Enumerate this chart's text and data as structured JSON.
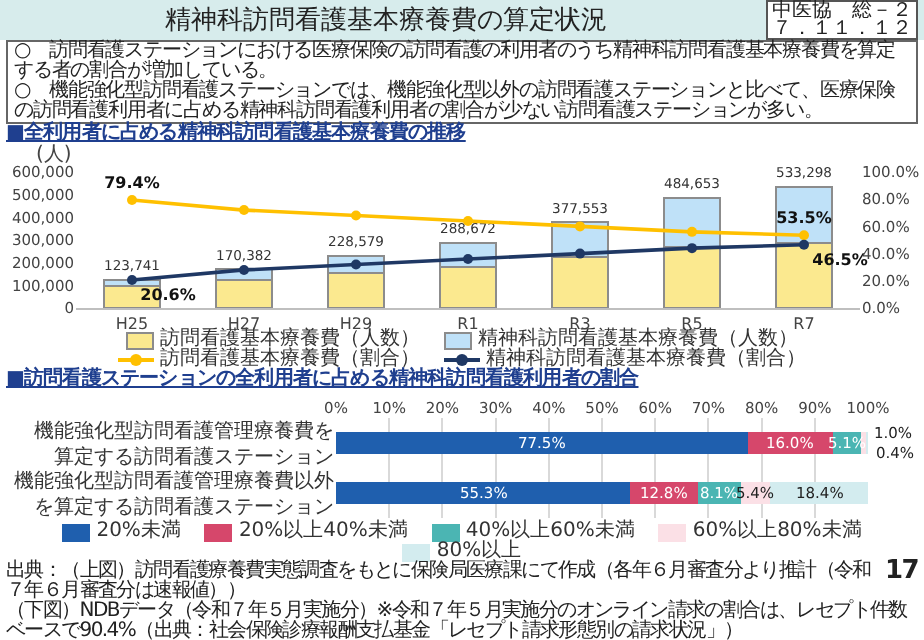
{
  "chart_data": [
    {
      "type": "bar",
      "title": "精神科訪問看護基本療養費の算定状況",
      "subtitle": "■全利用者に占める精神科訪問看護基本療養費の推移",
      "ylabel": "(人)",
      "annotations": [
        "中医協　総－２",
        "７．１１．１２",
        "○　訪問看護ステーションにおける医療保険の訪問看護の利用者のうち精神科訪問看護基本療養費を算定する者の割合が増加している。",
        "○　機能強化型訪問看護ステーションでは、機能強化型以外の訪問看護ステーションと比べて、医療保険の訪問看護利用者に占める精神科訪問看護利用者の割合が少ない訪問看護ステーションが多い。"
      ],
      "categories": [
        "H25",
        "H27",
        "H29",
        "R1",
        "R3",
        "R5",
        "R7"
      ],
      "stacked": true,
      "series": [
        {
          "name": "訪問看護基本療養費（人数）",
          "color": "#fbe98f",
          "values": [
            98000,
            123000,
            154000,
            183000,
            227000,
            271000,
            285000
          ]
        },
        {
          "name": "精神科訪問看護基本療養費（人数）",
          "color": "#bfe1f8",
          "values": [
            25741,
            47382,
            74579,
            105672,
            150553,
            213653,
            248298
          ]
        },
        {
          "name": "訪問看護基本療養費（割合）",
          "type": "line",
          "axis": "y2",
          "color": "#ffc000",
          "values": [
            79.4,
            72,
            68,
            64,
            60,
            56,
            53.5
          ],
          "value_labels": [
            "79.4%",
            null,
            null,
            null,
            null,
            null,
            "53.5%"
          ]
        },
        {
          "name": "精神科訪問看護基本療養費（割合）",
          "type": "line",
          "axis": "y2",
          "color": "#1f3864",
          "values": [
            20.6,
            28,
            32,
            36,
            40,
            44,
            46.5
          ],
          "value_labels": [
            "20.6%",
            null,
            null,
            null,
            null,
            null,
            "46.5%"
          ]
        }
      ],
      "totals": [
        "123,741",
        "170,382",
        "228,579",
        "288,672",
        "377,553",
        "484,653",
        "533,298"
      ],
      "ylim": [
        0,
        600000
      ],
      "yticks": [
        0,
        {
          "value": 100000,
          "label": "100,000"
        },
        {
          "value": 200000,
          "label": "200,000"
        },
        {
          "value": 300000,
          "label": "300,000"
        },
        {
          "value": 400000,
          "label": "400,000"
        },
        {
          "value": 500000,
          "label": "500,000"
        },
        {
          "value": 600000,
          "label": "600,000"
        }
      ],
      "y2lim": [
        0,
        100
      ],
      "y2ticks": [
        {
          "value": 0,
          "label": "0.0%"
        },
        {
          "value": 20,
          "label": "20.0%"
        },
        {
          "value": 40,
          "label": "40.0%"
        },
        {
          "value": 60,
          "label": "60.0%"
        },
        {
          "value": 80,
          "label": "80.0%"
        },
        {
          "value": 100,
          "label": "100.0%"
        }
      ],
      "legend": "bottom",
      "marker": "circle"
    },
    {
      "type": "bar",
      "orientation": "horizontal",
      "stacked": true,
      "title": "■訪問看護ステーションの全利用者に占める精神科訪問看護利用者の割合",
      "categories": [
        "機能強化型訪問看護管理療養費を算定する訪問看護ステーション",
        "機能強化型訪問看護管理療養費以外を算定する訪問看護ステーション"
      ],
      "series": [
        {
          "name": "20%未満",
          "color": "#1f5fae",
          "values": [
            77.5,
            55.3
          ],
          "value_labels": [
            "77.5%",
            "55.3%"
          ]
        },
        {
          "name": "20%以上40%未満",
          "color": "#d6476b",
          "values": [
            16.0,
            12.8
          ],
          "value_labels": [
            "16.0%",
            "12.8%"
          ]
        },
        {
          "name": "40%以上60%未満",
          "color": "#4bb5b3",
          "values": [
            5.1,
            8.1
          ],
          "value_labels": [
            "5.1%",
            "8.1%"
          ]
        },
        {
          "name": "60%以上80%未満",
          "color": "#fbe0e6",
          "values": [
            1.0,
            5.4
          ],
          "value_labels": [
            "1.0%",
            "5.4%"
          ]
        },
        {
          "name": "80%以上",
          "color": "#d3ecef",
          "values": [
            0.4,
            18.4
          ],
          "value_labels": [
            "0.4%",
            "18.4%"
          ]
        }
      ],
      "xlim": [
        0,
        100
      ],
      "xticks": [
        {
          "value": 0,
          "label": "0%"
        },
        {
          "value": 10,
          "label": "10%"
        },
        {
          "value": 20,
          "label": "20%"
        },
        {
          "value": 30,
          "label": "30%"
        },
        {
          "value": 40,
          "label": "40%"
        },
        {
          "value": 50,
          "label": "50%"
        },
        {
          "value": 60,
          "label": "60%"
        },
        {
          "value": 70,
          "label": "70%"
        },
        {
          "value": 80,
          "label": "80%"
        },
        {
          "value": 90,
          "label": "90%"
        },
        {
          "value": 100,
          "label": "100%"
        }
      ],
      "grid": "x",
      "legend": "bottom",
      "annotations": [
        "出典：（上図）訪問看護療養費実態調査をもとに保険局医療課にて作成（各年６月審査分より推計（令和７年６月審査分は速報値））",
        "（下図）NDBデータ（令和７年５月実施分）※令和７年５月実施分のオンライン請求の割合は、レセプト件数ベースで90.4%（出典：社会保険診療報酬支払基金「レセプト請求形態別の請求状況」）",
        "17"
      ]
    }
  ]
}
